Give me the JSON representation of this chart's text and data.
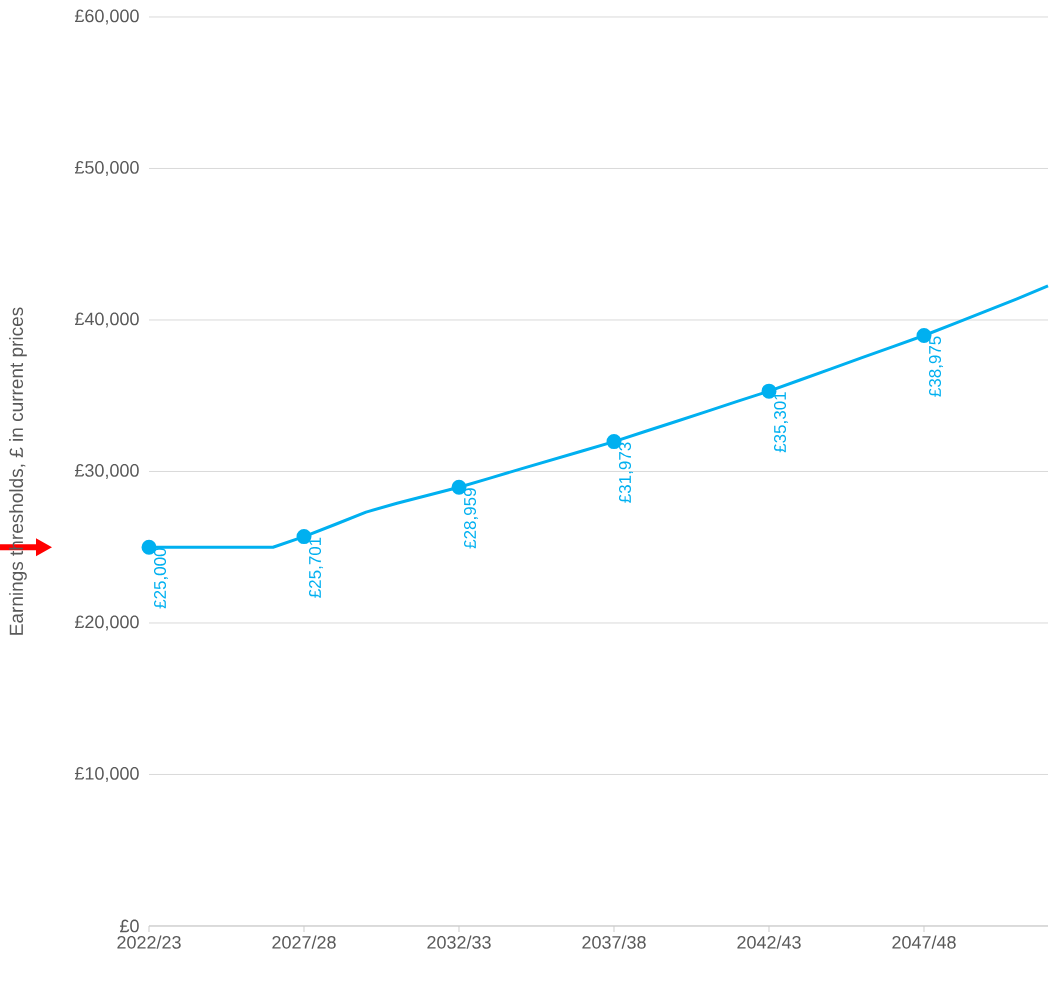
{
  "chart_data": {
    "type": "line",
    "ylabel": "Earnings thresholds, £ in current prices",
    "categories": [
      "2022/23",
      null,
      null,
      null,
      null,
      "2027/28",
      null,
      null,
      null,
      null,
      "2032/33",
      null,
      null,
      null,
      null,
      "2037/38",
      null,
      null,
      null,
      null,
      "2042/43",
      null,
      null,
      null,
      null,
      "2047/48",
      null,
      null,
      null,
      null
    ],
    "series": [
      {
        "color": "#00b0f0",
        "marker": "none",
        "values": [
          25000,
          25000,
          25000,
          25000,
          25000,
          25701,
          26500,
          27320,
          27900,
          28430,
          28959,
          29560,
          30170,
          30770,
          31370,
          31973,
          32640,
          33300,
          33970,
          34640,
          35301,
          36040,
          36770,
          37510,
          38240,
          38975,
          39780,
          40590,
          41400,
          42250
        ]
      },
      {
        "type": "scatter",
        "color": "#00b0f0",
        "marker": "circle",
        "values": [
          25000,
          null,
          null,
          null,
          null,
          25701,
          null,
          null,
          null,
          null,
          28959,
          null,
          null,
          null,
          null,
          31973,
          null,
          null,
          null,
          null,
          35301,
          null,
          null,
          null,
          null,
          38975,
          null,
          null,
          null,
          null
        ],
        "value_labels": [
          "£25,000",
          null,
          null,
          null,
          null,
          "£25,701",
          null,
          null,
          null,
          null,
          "£28,959",
          null,
          null,
          null,
          null,
          "£31,973",
          null,
          null,
          null,
          null,
          "£35,301",
          null,
          null,
          null,
          null,
          "£38,975",
          null,
          null,
          null,
          null
        ]
      }
    ],
    "ylim": [
      0,
      60000
    ],
    "yticks": [
      {
        "value": 0,
        "label": "£0"
      },
      {
        "value": 10000,
        "label": "£10,000"
      },
      {
        "value": 20000,
        "label": "£20,000"
      },
      {
        "value": 30000,
        "label": "£30,000"
      },
      {
        "value": 40000,
        "label": "£40,000"
      },
      {
        "value": 50000,
        "label": "£50,000"
      },
      {
        "value": 60000,
        "label": "£60,000"
      }
    ],
    "grid": "y",
    "line_style": "solid"
  }
}
